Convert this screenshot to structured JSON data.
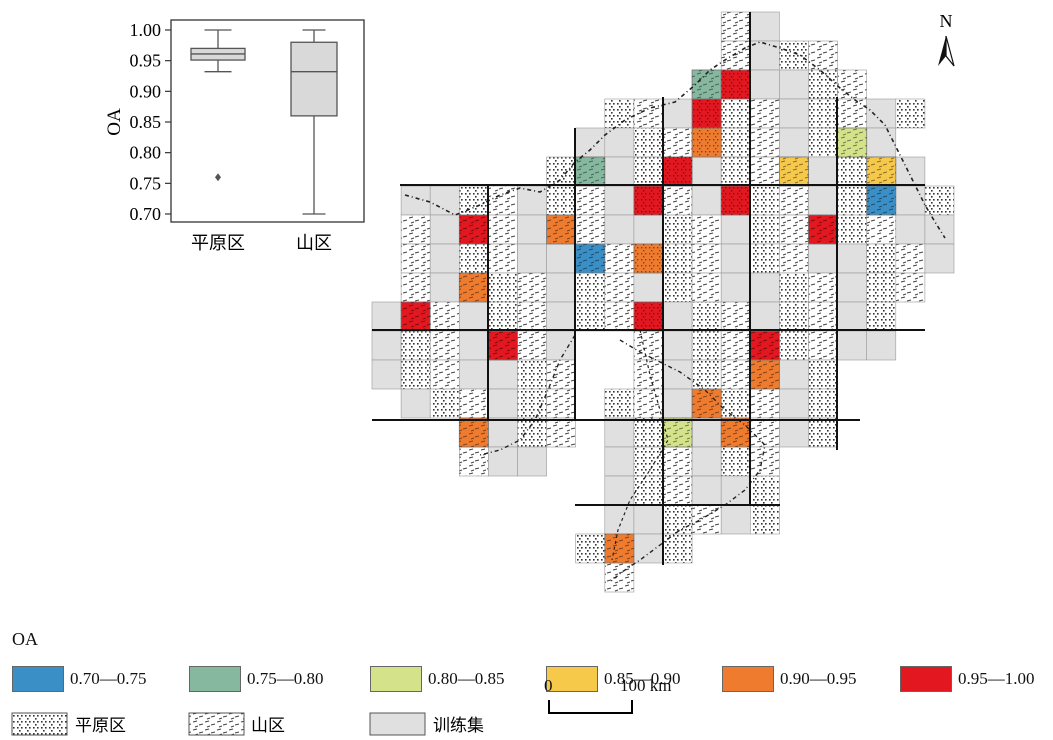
{
  "boxplot": {
    "ylabel": "OA",
    "ytick_labels": [
      "1.00",
      "0.95",
      "0.90",
      "0.85",
      "0.80",
      "0.75",
      "0.70"
    ],
    "categories": [
      "平原区",
      "山区"
    ]
  },
  "chart_data": {
    "type": "box",
    "ylabel": "OA",
    "ylim": [
      0.69,
      1.015
    ],
    "categories": [
      "平原区",
      "山区"
    ],
    "boxes": [
      {
        "category": "平原区",
        "whisker_low": 0.932,
        "q1": 0.951,
        "median": 0.961,
        "q3": 0.97,
        "whisker_high": 1.0,
        "outliers": [
          0.76
        ]
      },
      {
        "category": "山区",
        "whisker_low": 0.7,
        "q1": 0.86,
        "median": 0.932,
        "q3": 0.98,
        "whisker_high": 1.0,
        "outliers": []
      }
    ]
  },
  "map": {
    "north_label": "N"
  },
  "legend": {
    "title": "OA",
    "classes": [
      {
        "label": "0.70—0.75",
        "color": "#3a8fc6"
      },
      {
        "label": "0.75—0.80",
        "color": "#86b8a0"
      },
      {
        "label": "0.80—0.85",
        "color": "#d4e38a"
      },
      {
        "label": "0.85—0.90",
        "color": "#f7c94a"
      },
      {
        "label": "0.90—0.95",
        "color": "#ef7b2e"
      },
      {
        "label": "0.95—1.00",
        "color": "#e3171f"
      }
    ],
    "types": [
      {
        "label": "平原区",
        "pattern": "dots"
      },
      {
        "label": "山区",
        "pattern": "dashes"
      },
      {
        "label": "训练集",
        "color": "#e0e0e0"
      }
    ]
  },
  "scalebar": {
    "zero_label": "0",
    "max_label": "100 km"
  }
}
